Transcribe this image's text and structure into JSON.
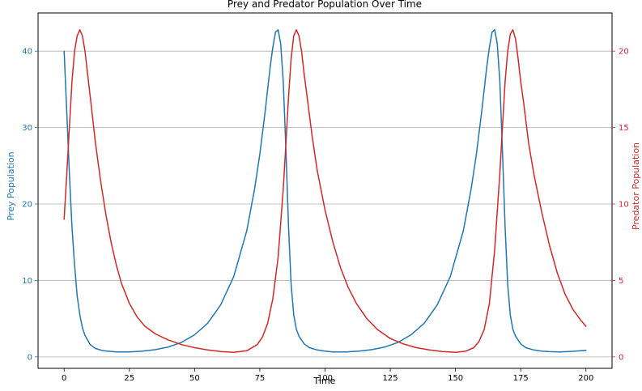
{
  "chart_data": {
    "type": "line",
    "title": "Prey and Predator Population Over Time",
    "xlabel": "Time",
    "ylabel_left": "Prey Population",
    "ylabel_right": "Predator Population",
    "xlim": [
      -10,
      210
    ],
    "ylim_left": [
      -1.5,
      45
    ],
    "ylim_right": [
      -0.75,
      22.5
    ],
    "xticks": [
      0,
      25,
      50,
      75,
      100,
      125,
      150,
      175,
      200
    ],
    "yticks_left": [
      0,
      10,
      20,
      30,
      40
    ],
    "yticks_right": [
      0,
      5,
      10,
      15,
      20
    ],
    "grid": "horizontal",
    "colors": {
      "prey": "#1f77b4",
      "predator": "#d62728"
    },
    "series": [
      {
        "axis": "left",
        "color": "#1f77b4",
        "x": [
          0,
          1,
          2,
          3,
          4,
          5,
          6,
          7,
          8,
          10,
          12,
          15,
          20,
          25,
          30,
          35,
          40,
          45,
          50,
          55,
          60,
          65,
          70,
          73,
          75,
          77,
          79,
          80,
          81,
          82,
          83,
          84,
          85,
          86,
          87,
          88,
          89,
          90,
          92,
          94,
          97,
          100,
          103,
          108,
          113,
          118,
          123,
          128,
          133,
          138,
          143,
          148,
          153,
          156,
          158,
          160,
          162,
          163,
          164,
          165,
          166,
          167,
          168,
          169,
          170,
          171,
          172,
          173,
          175,
          177,
          180,
          183,
          186,
          190,
          195,
          200
        ],
        "y": [
          40,
          32,
          24,
          17,
          12,
          8,
          5.5,
          3.8,
          2.8,
          1.6,
          1.1,
          0.8,
          0.65,
          0.65,
          0.75,
          0.95,
          1.3,
          1.9,
          2.9,
          4.4,
          6.8,
          10.5,
          16.5,
          22,
          26.5,
          32,
          38,
          40.5,
          42.5,
          42.8,
          41,
          36,
          27,
          17,
          9.5,
          5.5,
          3.6,
          2.7,
          1.7,
          1.2,
          0.9,
          0.75,
          0.65,
          0.65,
          0.75,
          0.95,
          1.3,
          1.9,
          2.9,
          4.4,
          6.8,
          10.5,
          16.5,
          22,
          26.5,
          32,
          38,
          40.5,
          42.5,
          42.8,
          41,
          36,
          27,
          17,
          9.5,
          5.5,
          3.6,
          2.7,
          1.7,
          1.2,
          0.9,
          0.75,
          0.68,
          0.65,
          0.72,
          0.85
        ]
      },
      {
        "axis": "right",
        "color": "#d62728",
        "x": [
          0,
          1,
          2,
          3,
          4,
          5,
          6,
          7,
          8,
          9,
          10,
          12,
          14,
          16,
          18,
          20,
          22,
          25,
          28,
          31,
          35,
          40,
          45,
          50,
          55,
          60,
          65,
          70,
          74,
          76,
          78,
          80,
          82,
          84,
          85,
          86,
          87,
          88,
          89,
          90,
          91,
          92,
          93,
          95,
          97,
          100,
          103,
          106,
          109,
          112,
          116,
          120,
          125,
          130,
          135,
          140,
          145,
          150,
          154,
          157,
          159,
          161,
          163,
          165,
          167,
          168,
          169,
          170,
          171,
          172,
          173,
          174,
          175,
          176,
          178,
          180,
          183,
          186,
          189,
          192,
          195,
          198,
          200
        ],
        "y": [
          9,
          12,
          15,
          18,
          20,
          21,
          21.4,
          21,
          20,
          18.5,
          17,
          14,
          11.5,
          9.3,
          7.5,
          6,
          4.8,
          3.5,
          2.6,
          2,
          1.5,
          1.1,
          0.8,
          0.6,
          0.45,
          0.35,
          0.3,
          0.4,
          0.8,
          1.3,
          2.2,
          3.8,
          6.5,
          11,
          14,
          17,
          19.5,
          21,
          21.4,
          21,
          20,
          18.5,
          17.2,
          14.5,
          12.2,
          9.6,
          7.5,
          5.8,
          4.5,
          3.5,
          2.5,
          1.8,
          1.2,
          0.85,
          0.6,
          0.45,
          0.35,
          0.3,
          0.38,
          0.6,
          1,
          1.8,
          3.5,
          7,
          12,
          15,
          18,
          20,
          21.1,
          21.4,
          20.8,
          19.5,
          18,
          16.8,
          14,
          12,
          9.5,
          7.3,
          5.5,
          4.1,
          3.1,
          2.4,
          2
        ]
      }
    ]
  }
}
